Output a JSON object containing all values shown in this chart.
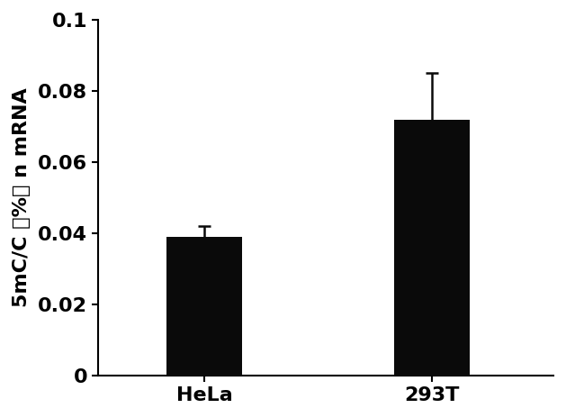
{
  "categories": [
    "HeLa",
    "293T"
  ],
  "values": [
    0.039,
    0.072
  ],
  "errors": [
    0.003,
    0.013
  ],
  "bar_color": "#0a0a0a",
  "bar_width": 0.5,
  "ylabel": "5mC/C （%） n mRNA",
  "ylim": [
    0,
    0.1
  ],
  "yticks": [
    0,
    0.02,
    0.04,
    0.06,
    0.08,
    0.1
  ],
  "ytick_labels": [
    "0",
    "0.02",
    "0.04",
    "0.06",
    "0.08",
    "0.1"
  ],
  "background_color": "#ffffff",
  "capsize": 5,
  "error_color": "#0a0a0a",
  "tick_labelsize": 16,
  "ylabel_fontsize": 16,
  "x_positions": [
    1,
    2.5
  ],
  "xlim": [
    0.3,
    3.3
  ]
}
